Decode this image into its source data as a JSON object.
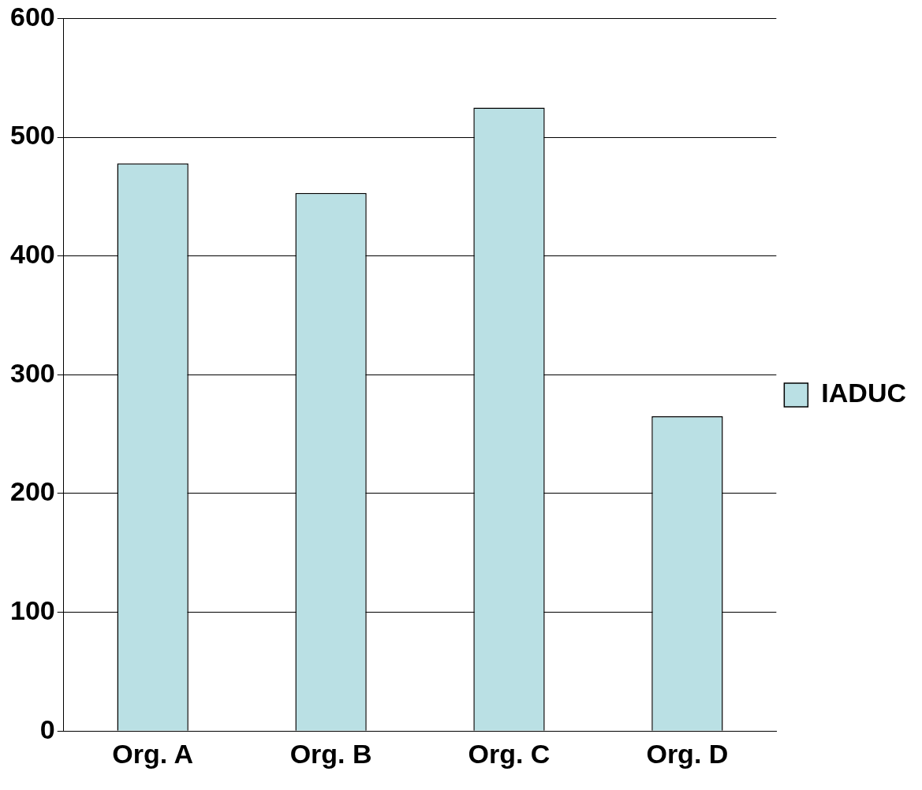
{
  "chart_data": {
    "type": "bar",
    "categories": [
      "Org. A",
      "Org. B",
      "Org. C",
      "Org. D"
    ],
    "series": [
      {
        "name": "IADUC",
        "color": "#bae0e4",
        "values": [
          478,
          453,
          525,
          265
        ]
      }
    ],
    "ylim": [
      0,
      600
    ],
    "yticks": [
      0,
      100,
      200,
      300,
      400,
      500,
      600
    ],
    "grid": "y",
    "legend": "right"
  }
}
